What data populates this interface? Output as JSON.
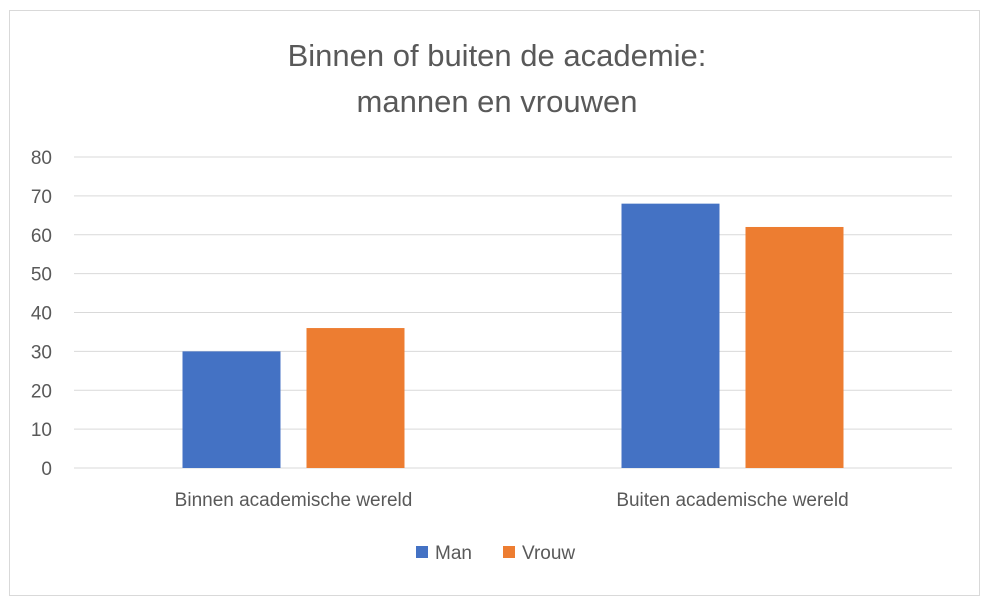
{
  "chart_data": {
    "type": "bar",
    "title_lines": [
      "Binnen of buiten de academie:",
      "mannen en vrouwen"
    ],
    "categories": [
      "Binnen academische wereld",
      "Buiten academische wereld"
    ],
    "series": [
      {
        "name": "Man",
        "color": "#4472c4",
        "values": [
          30,
          68
        ]
      },
      {
        "name": "Vrouw",
        "color": "#ed7d31",
        "values": [
          36,
          62
        ]
      }
    ],
    "ylim": [
      0,
      80
    ],
    "yticks": [
      0,
      10,
      20,
      30,
      40,
      50,
      60,
      70,
      80
    ],
    "xlabel": "",
    "ylabel": "",
    "grid": true,
    "legend_position": "bottom",
    "gridline_color": "#d9d9d9"
  }
}
